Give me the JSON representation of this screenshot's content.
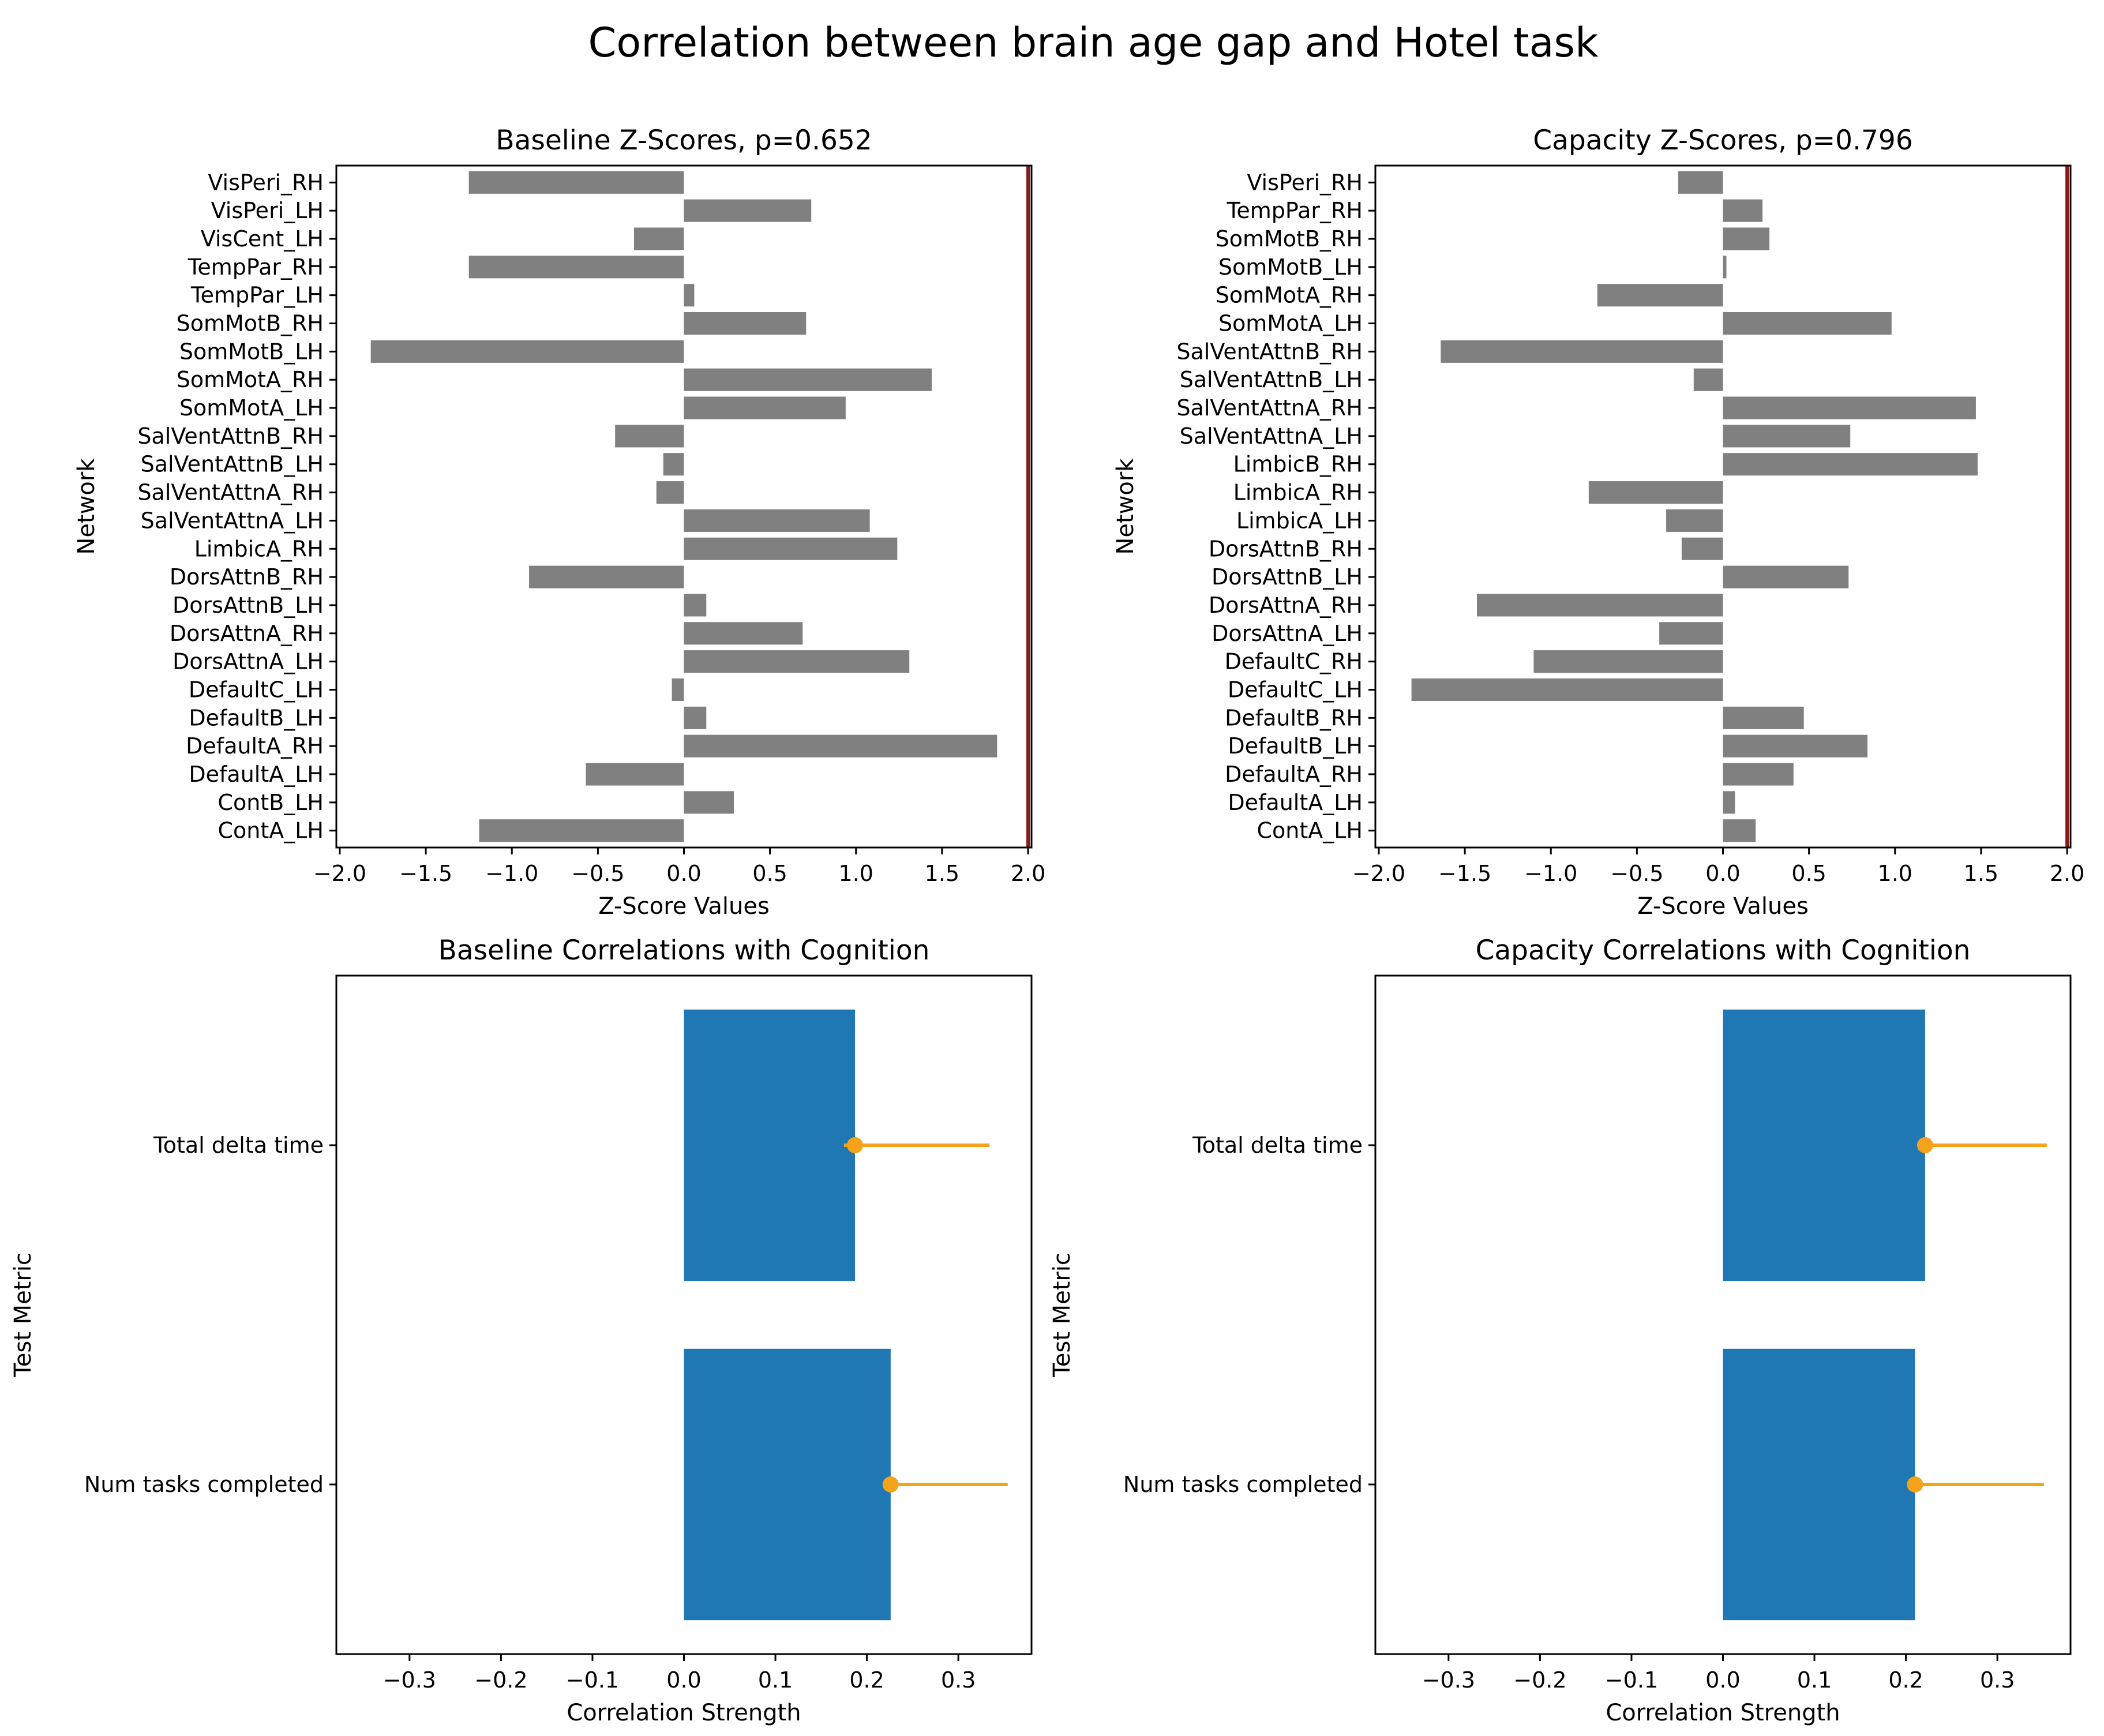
{
  "figure_title": "Correlation between brain age gap and Hotel task",
  "colors": {
    "zscore_bar": "#808080",
    "corr_bar": "#1f77b4",
    "errorbar": "#f5a31a",
    "refline": "#8b1a1a"
  },
  "chart_data": [
    {
      "type": "bar",
      "orientation": "horizontal",
      "title": "Baseline Z-Scores, p=0.652",
      "xlabel": "Z-Score Values",
      "ylabel": "Network",
      "xlim": [
        -2.02,
        2.02
      ],
      "xticks": [
        -2.0,
        -1.5,
        -1.0,
        -0.5,
        0.0,
        0.5,
        1.0,
        1.5,
        2.0
      ],
      "xtick_labels": [
        "−2.0",
        "−1.5",
        "−1.0",
        "−0.5",
        "0.0",
        "0.5",
        "1.0",
        "1.5",
        "2.0"
      ],
      "reference_line_x": 2.0,
      "categories": [
        "VisPeri_RH",
        "VisPeri_LH",
        "VisCent_LH",
        "TempPar_RH",
        "TempPar_LH",
        "SomMotB_RH",
        "SomMotB_LH",
        "SomMotA_RH",
        "SomMotA_LH",
        "SalVentAttnB_RH",
        "SalVentAttnB_LH",
        "SalVentAttnA_RH",
        "SalVentAttnA_LH",
        "LimbicA_RH",
        "DorsAttnB_RH",
        "DorsAttnB_LH",
        "DorsAttnA_RH",
        "DorsAttnA_LH",
        "DefaultC_LH",
        "DefaultB_LH",
        "DefaultA_RH",
        "DefaultA_LH",
        "ContB_LH",
        "ContA_LH"
      ],
      "values": [
        -1.25,
        0.74,
        -0.29,
        -1.25,
        0.06,
        0.71,
        -1.82,
        1.44,
        0.94,
        -0.4,
        -0.12,
        -0.16,
        1.08,
        1.24,
        -0.9,
        0.13,
        0.69,
        1.31,
        -0.07,
        0.13,
        1.82,
        -0.57,
        0.29,
        -1.19
      ]
    },
    {
      "type": "bar",
      "orientation": "horizontal",
      "title": "Capacity Z-Scores, p=0.796",
      "xlabel": "Z-Score Values",
      "ylabel": "Network",
      "xlim": [
        -2.02,
        2.02
      ],
      "xticks": [
        -2.0,
        -1.5,
        -1.0,
        -0.5,
        0.0,
        0.5,
        1.0,
        1.5,
        2.0
      ],
      "xtick_labels": [
        "−2.0",
        "−1.5",
        "−1.0",
        "−0.5",
        "0.0",
        "0.5",
        "1.0",
        "1.5",
        "2.0"
      ],
      "reference_line_x": 2.0,
      "categories": [
        "VisPeri_RH",
        "TempPar_RH",
        "SomMotB_RH",
        "SomMotB_LH",
        "SomMotA_RH",
        "SomMotA_LH",
        "SalVentAttnB_RH",
        "SalVentAttnB_LH",
        "SalVentAttnA_RH",
        "SalVentAttnA_LH",
        "LimbicB_RH",
        "LimbicA_RH",
        "LimbicA_LH",
        "DorsAttnB_RH",
        "DorsAttnB_LH",
        "DorsAttnA_RH",
        "DorsAttnA_LH",
        "DefaultC_RH",
        "DefaultC_LH",
        "DefaultB_RH",
        "DefaultB_LH",
        "DefaultA_RH",
        "DefaultA_LH",
        "ContA_LH"
      ],
      "values": [
        -0.26,
        0.23,
        0.27,
        0.02,
        -0.73,
        0.98,
        -1.64,
        -0.17,
        1.47,
        0.74,
        1.48,
        -0.78,
        -0.33,
        -0.24,
        0.73,
        -1.43,
        -0.37,
        -1.1,
        -1.81,
        0.47,
        0.84,
        0.41,
        0.07,
        0.19
      ]
    },
    {
      "type": "bar",
      "orientation": "horizontal",
      "title": "Baseline Correlations with Cognition",
      "xlabel": "Correlation Strength",
      "ylabel": "Test Metric",
      "xlim": [
        -0.38,
        0.38
      ],
      "xticks": [
        -0.3,
        -0.2,
        -0.1,
        0.0,
        0.1,
        0.2,
        0.3
      ],
      "xtick_labels": [
        "−0.3",
        "−0.2",
        "−0.1",
        "0.0",
        "0.1",
        "0.2",
        "0.3"
      ],
      "categories": [
        "Total delta time",
        "Num tasks completed"
      ],
      "values": [
        0.187,
        0.226
      ],
      "errors": [
        [
          0.012,
          0.147
        ],
        [
          0.0,
          0.128
        ]
      ]
    },
    {
      "type": "bar",
      "orientation": "horizontal",
      "title": "Capacity Correlations with Cognition",
      "xlabel": "Correlation Strength",
      "ylabel": "Test Metric",
      "xlim": [
        -0.38,
        0.38
      ],
      "xticks": [
        -0.3,
        -0.2,
        -0.1,
        0.0,
        0.1,
        0.2,
        0.3
      ],
      "xtick_labels": [
        "−0.3",
        "−0.2",
        "−0.1",
        "0.0",
        "0.1",
        "0.2",
        "0.3"
      ],
      "categories": [
        "Total delta time",
        "Num tasks completed"
      ],
      "values": [
        0.221,
        0.21
      ],
      "errors": [
        [
          0.0,
          0.133
        ],
        [
          0.0,
          0.141
        ]
      ]
    }
  ]
}
